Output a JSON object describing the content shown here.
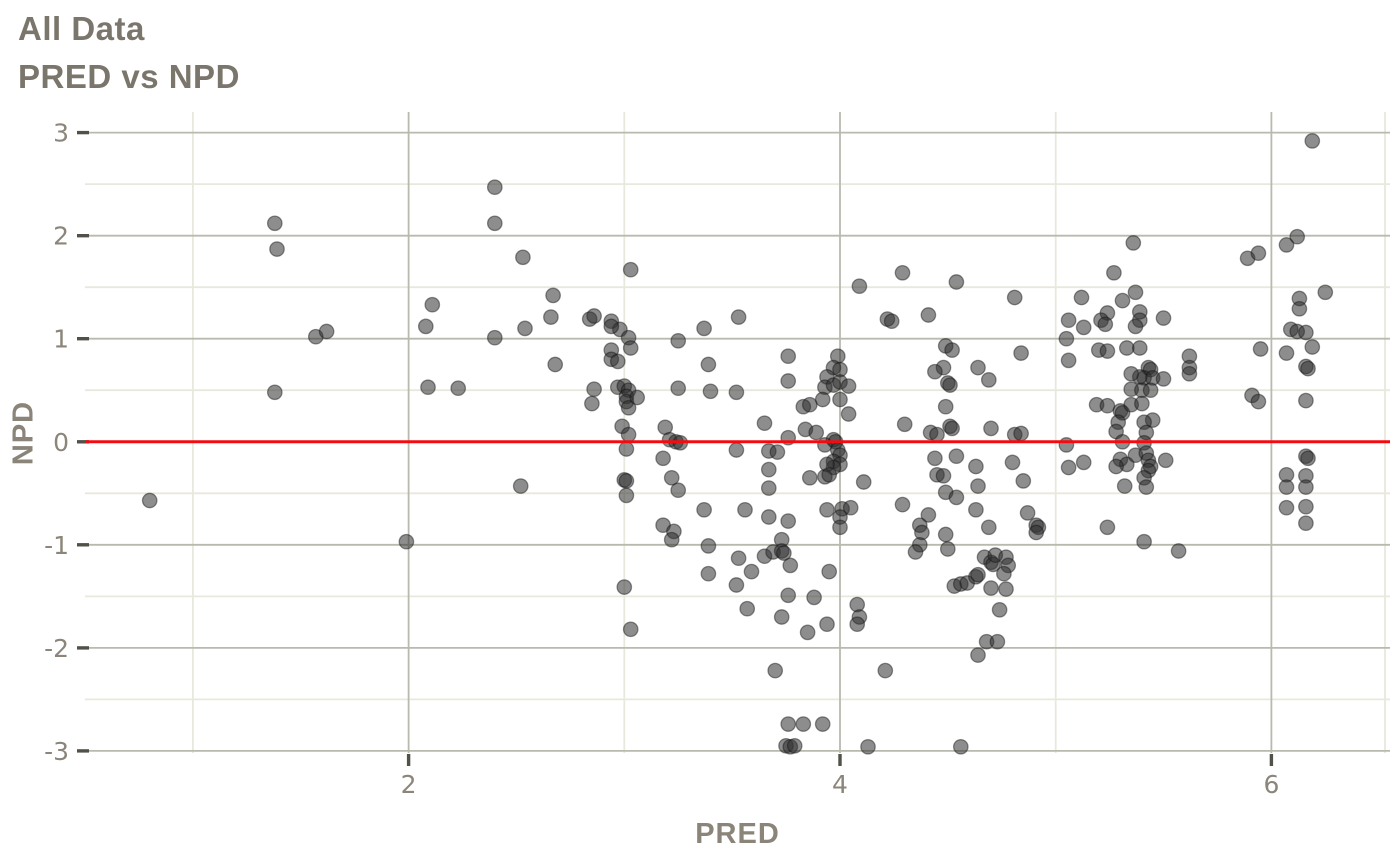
{
  "chart_data": {
    "type": "scatter",
    "title": "All Data",
    "subtitle": "PRED vs NPD",
    "xlabel": "PRED",
    "ylabel": "NPD",
    "xlim": [
      0.5,
      6.55
    ],
    "ylim": [
      -3.02,
      3.2
    ],
    "x_major_ticks": [
      2,
      4,
      6
    ],
    "x_minor_gridlines": [
      1,
      3,
      5
    ],
    "y_major_ticks": [
      3,
      2,
      1,
      0,
      -1,
      -2,
      -3
    ],
    "y_minor_gridlines": [
      2.5,
      1.5,
      0.5,
      -0.5,
      -1.5,
      -2.5
    ],
    "grid": true,
    "legend": "none",
    "reference_line": {
      "y": 0,
      "color": "#f40b12"
    },
    "colors": {
      "background": "#ffffff",
      "title": "#7b766c",
      "tick_label": "#8b857a",
      "major_grid": "#bab9ae",
      "minor_grid": "#e9e8dd",
      "tick_mark": "#51514a",
      "point_fill": "#2f2f2f",
      "point_stroke": "#141414",
      "reference": "#f40b12"
    },
    "points": [
      [
        1.38,
        2.12
      ],
      [
        1.39,
        1.87
      ],
      [
        1.57,
        1.02
      ],
      [
        1.62,
        1.07
      ],
      [
        1.38,
        0.48
      ],
      [
        0.8,
        -0.57
      ],
      [
        1.99,
        -0.97
      ],
      [
        2.4,
        2.47
      ],
      [
        2.4,
        2.12
      ],
      [
        2.53,
        1.79
      ],
      [
        3.03,
        1.67
      ],
      [
        2.67,
        1.42
      ],
      [
        2.11,
        1.33
      ],
      [
        2.66,
        1.21
      ],
      [
        2.84,
        1.19
      ],
      [
        2.86,
        1.22
      ],
      [
        2.94,
        1.17
      ],
      [
        2.08,
        1.12
      ],
      [
        2.54,
        1.1
      ],
      [
        2.98,
        1.09
      ],
      [
        2.94,
        1.12
      ],
      [
        3.37,
        1.1
      ],
      [
        3.53,
        1.21
      ],
      [
        2.4,
        1.01
      ],
      [
        3.02,
        1.01
      ],
      [
        3.03,
        0.91
      ],
      [
        3.25,
        0.98
      ],
      [
        2.94,
        0.89
      ],
      [
        2.94,
        0.8
      ],
      [
        2.97,
        0.78
      ],
      [
        2.68,
        0.75
      ],
      [
        3.39,
        0.75
      ],
      [
        2.09,
        0.53
      ],
      [
        2.23,
        0.52
      ],
      [
        2.86,
        0.51
      ],
      [
        2.97,
        0.53
      ],
      [
        3.0,
        0.54
      ],
      [
        3.02,
        0.5
      ],
      [
        3.01,
        0.44
      ],
      [
        3.01,
        0.39
      ],
      [
        3.02,
        0.33
      ],
      [
        3.06,
        0.43
      ],
      [
        2.85,
        0.37
      ],
      [
        3.25,
        0.52
      ],
      [
        3.4,
        0.49
      ],
      [
        3.52,
        0.48
      ],
      [
        2.99,
        0.15
      ],
      [
        3.02,
        0.07
      ],
      [
        3.01,
        -0.07
      ],
      [
        3.19,
        0.14
      ],
      [
        3.21,
        0.02
      ],
      [
        3.24,
        0.0
      ],
      [
        3.26,
        -0.01
      ],
      [
        3.52,
        -0.08
      ],
      [
        3.18,
        -0.16
      ],
      [
        2.52,
        -0.43
      ],
      [
        3.0,
        -0.37
      ],
      [
        3.01,
        -0.38
      ],
      [
        3.22,
        -0.35
      ],
      [
        3.25,
        -0.47
      ],
      [
        3.01,
        -0.52
      ],
      [
        3.37,
        -0.66
      ],
      [
        3.18,
        -0.81
      ],
      [
        3.23,
        -0.87
      ],
      [
        3.22,
        -0.95
      ],
      [
        3.39,
        -1.01
      ],
      [
        4.29,
        1.64
      ],
      [
        4.09,
        1.51
      ],
      [
        4.54,
        1.55
      ],
      [
        4.81,
        1.4
      ],
      [
        4.22,
        1.19
      ],
      [
        4.24,
        1.17
      ],
      [
        4.41,
        1.23
      ],
      [
        5.06,
        1.18
      ],
      [
        6.19,
        2.92
      ],
      [
        5.36,
        1.93
      ],
      [
        6.12,
        1.99
      ],
      [
        6.07,
        1.91
      ],
      [
        5.89,
        1.78
      ],
      [
        5.94,
        1.83
      ],
      [
        5.27,
        1.64
      ],
      [
        5.12,
        1.4
      ],
      [
        5.37,
        1.45
      ],
      [
        5.31,
        1.37
      ],
      [
        6.25,
        1.45
      ],
      [
        5.24,
        1.25
      ],
      [
        5.39,
        1.26
      ],
      [
        5.39,
        1.18
      ],
      [
        5.21,
        1.18
      ],
      [
        5.5,
        1.2
      ],
      [
        6.13,
        1.39
      ],
      [
        6.13,
        1.29
      ],
      [
        5.05,
        1.0
      ],
      [
        5.13,
        1.11
      ],
      [
        5.23,
        1.14
      ],
      [
        5.37,
        1.12
      ],
      [
        6.09,
        1.09
      ],
      [
        6.12,
        1.07
      ],
      [
        6.16,
        1.06
      ],
      [
        3.76,
        0.83
      ],
      [
        3.99,
        0.83
      ],
      [
        3.97,
        0.72
      ],
      [
        4.0,
        0.7
      ],
      [
        3.76,
        0.59
      ],
      [
        3.94,
        0.63
      ],
      [
        3.93,
        0.53
      ],
      [
        3.97,
        0.55
      ],
      [
        4.0,
        0.58
      ],
      [
        4.04,
        0.54
      ],
      [
        3.92,
        0.41
      ],
      [
        4.0,
        0.41
      ],
      [
        4.49,
        0.93
      ],
      [
        4.52,
        0.89
      ],
      [
        4.48,
        0.72
      ],
      [
        4.44,
        0.68
      ],
      [
        4.5,
        0.57
      ],
      [
        4.51,
        0.55
      ],
      [
        4.64,
        0.72
      ],
      [
        4.69,
        0.6
      ],
      [
        4.84,
        0.86
      ],
      [
        5.06,
        0.79
      ],
      [
        3.65,
        0.18
      ],
      [
        3.83,
        0.34
      ],
      [
        3.86,
        0.36
      ],
      [
        3.84,
        0.12
      ],
      [
        3.89,
        0.09
      ],
      [
        3.76,
        0.04
      ],
      [
        4.04,
        0.27
      ],
      [
        4.49,
        0.34
      ],
      [
        4.51,
        0.15
      ],
      [
        4.52,
        0.13
      ],
      [
        4.3,
        0.17
      ],
      [
        4.42,
        0.09
      ],
      [
        4.45,
        0.07
      ],
      [
        4.7,
        0.13
      ],
      [
        4.81,
        0.07
      ],
      [
        4.84,
        0.08
      ],
      [
        5.05,
        -0.03
      ],
      [
        3.97,
        0.02
      ],
      [
        3.98,
        0.0
      ],
      [
        3.93,
        -0.03
      ],
      [
        3.99,
        -0.08
      ],
      [
        4.0,
        -0.13
      ],
      [
        3.97,
        -0.19
      ],
      [
        4.0,
        -0.22
      ],
      [
        3.97,
        -0.25
      ],
      [
        3.94,
        -0.22
      ],
      [
        3.93,
        -0.34
      ],
      [
        3.95,
        -0.32
      ],
      [
        3.67,
        -0.09
      ],
      [
        3.71,
        -0.1
      ],
      [
        3.67,
        -0.27
      ],
      [
        3.86,
        -0.35
      ],
      [
        3.67,
        -0.45
      ],
      [
        4.11,
        -0.39
      ],
      [
        4.44,
        -0.16
      ],
      [
        4.54,
        -0.14
      ],
      [
        4.45,
        -0.32
      ],
      [
        4.48,
        -0.33
      ],
      [
        4.63,
        -0.24
      ],
      [
        4.64,
        -0.43
      ],
      [
        4.8,
        -0.2
      ],
      [
        4.85,
        -0.38
      ],
      [
        3.56,
        -0.66
      ],
      [
        3.67,
        -0.73
      ],
      [
        3.76,
        -0.77
      ],
      [
        3.94,
        -0.66
      ],
      [
        4.01,
        -0.65
      ],
      [
        4.05,
        -0.64
      ],
      [
        4.0,
        -0.73
      ],
      [
        4.0,
        -0.83
      ],
      [
        4.29,
        -0.61
      ],
      [
        4.49,
        -0.49
      ],
      [
        4.54,
        -0.54
      ],
      [
        4.41,
        -0.71
      ],
      [
        4.37,
        -0.81
      ],
      [
        4.38,
        -0.88
      ],
      [
        4.49,
        -0.9
      ],
      [
        4.63,
        -0.66
      ],
      [
        4.69,
        -0.83
      ],
      [
        4.87,
        -0.69
      ],
      [
        4.91,
        -0.81
      ],
      [
        4.92,
        -0.83
      ],
      [
        4.91,
        -0.88
      ],
      [
        5.2,
        0.89
      ],
      [
        5.24,
        0.88
      ],
      [
        5.33,
        0.91
      ],
      [
        5.39,
        0.91
      ],
      [
        5.62,
        0.83
      ],
      [
        5.62,
        0.72
      ],
      [
        5.62,
        0.66
      ],
      [
        5.43,
        0.72
      ],
      [
        5.44,
        0.7
      ],
      [
        5.41,
        0.62
      ],
      [
        5.45,
        0.62
      ],
      [
        5.39,
        0.63
      ],
      [
        5.35,
        0.66
      ],
      [
        5.5,
        0.61
      ],
      [
        5.35,
        0.51
      ],
      [
        5.4,
        0.5
      ],
      [
        5.44,
        0.5
      ],
      [
        5.95,
        0.9
      ],
      [
        6.07,
        0.86
      ],
      [
        6.19,
        0.92
      ],
      [
        6.16,
        0.73
      ],
      [
        6.17,
        0.71
      ],
      [
        5.91,
        0.45
      ],
      [
        5.94,
        0.39
      ],
      [
        6.16,
        0.4
      ],
      [
        5.19,
        0.36
      ],
      [
        5.24,
        0.35
      ],
      [
        5.3,
        0.3
      ],
      [
        5.31,
        0.28
      ],
      [
        5.35,
        0.36
      ],
      [
        5.4,
        0.37
      ],
      [
        5.29,
        0.19
      ],
      [
        5.45,
        0.21
      ],
      [
        5.41,
        0.19
      ],
      [
        5.28,
        0.1
      ],
      [
        5.42,
        0.09
      ],
      [
        5.31,
        0.0
      ],
      [
        5.41,
        -0.01
      ],
      [
        5.06,
        -0.25
      ],
      [
        5.13,
        -0.2
      ],
      [
        5.3,
        -0.17
      ],
      [
        5.33,
        -0.22
      ],
      [
        5.28,
        -0.24
      ],
      [
        5.37,
        -0.13
      ],
      [
        5.42,
        -0.11
      ],
      [
        5.43,
        -0.18
      ],
      [
        5.44,
        -0.24
      ],
      [
        5.43,
        -0.28
      ],
      [
        5.51,
        -0.18
      ],
      [
        5.32,
        -0.43
      ],
      [
        5.41,
        -0.35
      ],
      [
        5.42,
        -0.44
      ],
      [
        6.07,
        -0.32
      ],
      [
        6.16,
        -0.14
      ],
      [
        6.17,
        -0.16
      ],
      [
        6.16,
        -0.33
      ],
      [
        6.07,
        -0.44
      ],
      [
        6.16,
        -0.44
      ],
      [
        6.07,
        -0.64
      ],
      [
        6.16,
        -0.63
      ],
      [
        6.16,
        -0.79
      ],
      [
        5.24,
        -0.83
      ],
      [
        5.41,
        -0.97
      ],
      [
        5.57,
        -1.06
      ],
      [
        3.53,
        -1.13
      ],
      [
        3.39,
        -1.28
      ],
      [
        3.0,
        -1.41
      ],
      [
        3.52,
        -1.39
      ],
      [
        3.03,
        -1.82
      ],
      [
        3.73,
        -0.95
      ],
      [
        3.65,
        -1.11
      ],
      [
        3.69,
        -1.07
      ],
      [
        3.73,
        -1.06
      ],
      [
        3.74,
        -1.08
      ],
      [
        3.77,
        -1.2
      ],
      [
        3.59,
        -1.26
      ],
      [
        3.95,
        -1.26
      ],
      [
        3.76,
        -1.49
      ],
      [
        3.88,
        -1.51
      ],
      [
        3.57,
        -1.62
      ],
      [
        3.73,
        -1.7
      ],
      [
        3.85,
        -1.85
      ],
      [
        3.94,
        -1.77
      ],
      [
        4.08,
        -1.58
      ],
      [
        4.09,
        -1.7
      ],
      [
        4.08,
        -1.77
      ],
      [
        4.37,
        -1.0
      ],
      [
        4.35,
        -1.07
      ],
      [
        4.5,
        -1.04
      ],
      [
        4.53,
        -1.4
      ],
      [
        4.56,
        -1.38
      ],
      [
        4.59,
        -1.37
      ],
      [
        4.63,
        -1.31
      ],
      [
        4.64,
        -1.29
      ],
      [
        4.67,
        -1.12
      ],
      [
        4.7,
        -1.17
      ],
      [
        4.71,
        -1.19
      ],
      [
        4.72,
        -1.1
      ],
      [
        4.77,
        -1.12
      ],
      [
        4.78,
        -1.2
      ],
      [
        4.76,
        -1.28
      ],
      [
        4.7,
        -1.42
      ],
      [
        4.77,
        -1.43
      ],
      [
        4.74,
        -1.63
      ],
      [
        4.68,
        -1.94
      ],
      [
        4.73,
        -1.94
      ],
      [
        4.64,
        -2.07
      ],
      [
        3.7,
        -2.22
      ],
      [
        4.21,
        -2.22
      ],
      [
        3.76,
        -2.74
      ],
      [
        3.83,
        -2.74
      ],
      [
        3.92,
        -2.74
      ],
      [
        3.75,
        -2.95
      ],
      [
        3.77,
        -2.96
      ],
      [
        3.79,
        -2.95
      ],
      [
        4.13,
        -2.96
      ],
      [
        4.56,
        -2.96
      ]
    ]
  }
}
